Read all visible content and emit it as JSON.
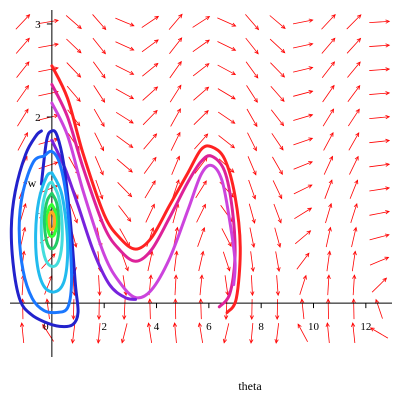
{
  "chart_data": {
    "type": "line",
    "title": "",
    "xlabel": "theta",
    "ylabel": "w",
    "xlim": [
      -1.6,
      13.0
    ],
    "ylim": [
      -0.45,
      3.15
    ],
    "grid": false,
    "legend": "none",
    "x_ticks": [
      0,
      2,
      4,
      6,
      8,
      10,
      12
    ],
    "y_ticks": [
      1,
      2,
      3
    ],
    "x_tick_labels": [
      "0",
      "2",
      "4",
      "6",
      "8",
      "10",
      "12"
    ],
    "y_tick_labels": [
      "1",
      "2",
      "3"
    ],
    "direction_field": {
      "color": "#ff0000",
      "system": "theta' = w, w' = -sin(theta)",
      "columns": 15,
      "rows": 14
    },
    "series": [
      {
        "color": "#ff2222",
        "initial": [
          0,
          2.55
        ],
        "points": [
          [
            0,
            2.55
          ],
          [
            0.6,
            2.2
          ],
          [
            1.2,
            1.6
          ],
          [
            2,
            0.95
          ],
          [
            2.6,
            0.7
          ],
          [
            3.2,
            0.58
          ],
          [
            3.8,
            0.7
          ],
          [
            4.5,
            1.05
          ],
          [
            5.2,
            1.4
          ],
          [
            5.7,
            1.65
          ],
          [
            6.1,
            1.68
          ],
          [
            6.6,
            1.55
          ],
          [
            7,
            1.15
          ],
          [
            7.2,
            0.6
          ],
          [
            7.05,
            0.05
          ],
          [
            6.7,
            -0.1
          ]
        ]
      },
      {
        "color": "#dd2299",
        "initial": [
          0,
          2.35
        ],
        "points": [
          [
            0,
            2.35
          ],
          [
            0.6,
            2.0
          ],
          [
            1.2,
            1.45
          ],
          [
            2,
            0.82
          ],
          [
            2.6,
            0.57
          ],
          [
            3.2,
            0.45
          ],
          [
            3.8,
            0.57
          ],
          [
            4.5,
            0.92
          ],
          [
            5.2,
            1.3
          ],
          [
            5.7,
            1.52
          ],
          [
            6.1,
            1.58
          ],
          [
            6.6,
            1.42
          ],
          [
            6.9,
            1.0
          ],
          [
            7,
            0.5
          ],
          [
            6.8,
            0.1
          ],
          [
            6.4,
            -0.04
          ]
        ]
      },
      {
        "color": "#cc44dd",
        "initial": [
          0,
          2.15
        ],
        "points": [
          [
            0,
            2.15
          ],
          [
            0.6,
            1.8
          ],
          [
            1.2,
            1.2
          ],
          [
            2,
            0.52
          ],
          [
            2.6,
            0.22
          ],
          [
            3.2,
            0.06
          ],
          [
            3.8,
            0.14
          ],
          [
            4.5,
            0.48
          ],
          [
            5.2,
            1.0
          ],
          [
            5.7,
            1.38
          ],
          [
            6.1,
            1.48
          ],
          [
            6.5,
            1.32
          ],
          [
            6.8,
            0.88
          ],
          [
            7,
            0.45
          ],
          [
            6.95,
            0.2
          ]
        ]
      },
      {
        "color": "#7722dd",
        "initial": [
          0,
          1.75
        ],
        "points": [
          [
            0,
            1.75
          ],
          [
            0.5,
            1.45
          ],
          [
            1.0,
            1.05
          ],
          [
            1.6,
            0.55
          ],
          [
            2.2,
            0.2
          ],
          [
            2.8,
            0.06
          ],
          [
            3.2,
            0.04
          ]
        ]
      },
      {
        "color": "#2222cc",
        "initial": [
          0,
          1.85
        ],
        "points": [
          [
            -0.4,
            1.28
          ],
          [
            -0.2,
            1.75
          ],
          [
            0,
            1.85
          ],
          [
            0.2,
            1.8
          ],
          [
            0.45,
            1.5
          ],
          [
            0.7,
            0.9
          ],
          [
            0.9,
            0.2
          ],
          [
            1,
            -0.1
          ],
          [
            0.8,
            -0.23
          ],
          [
            0.3,
            -0.25
          ],
          [
            -0.3,
            -0.2
          ],
          [
            -0.8,
            -0.12
          ],
          [
            -1.2,
            0.02
          ],
          [
            -1.45,
            0.35
          ],
          [
            -1.55,
            0.8
          ],
          [
            -1.4,
            1.2
          ],
          [
            -1.0,
            1.6
          ],
          [
            -0.6,
            1.8
          ],
          [
            -0.4,
            1.85
          ]
        ]
      },
      {
        "color": "#1a77ff",
        "initial": [
          0,
          1.63
        ],
        "points": [
          [
            -0.3,
            1.58
          ],
          [
            0,
            1.63
          ],
          [
            0.3,
            1.5
          ],
          [
            0.55,
            1.15
          ],
          [
            0.7,
            0.65
          ],
          [
            0.75,
            0.2
          ],
          [
            0.6,
            -0.05
          ],
          [
            0.2,
            -0.1
          ],
          [
            -0.3,
            -0.08
          ],
          [
            -0.75,
            0.05
          ],
          [
            -1.1,
            0.35
          ],
          [
            -1.25,
            0.8
          ],
          [
            -1.1,
            1.2
          ],
          [
            -0.7,
            1.52
          ],
          [
            -0.3,
            1.58
          ]
        ]
      },
      {
        "color": "#22bbee",
        "initial": [
          0,
          1.4
        ],
        "points": [
          [
            0,
            1.4
          ],
          [
            0.35,
            1.2
          ],
          [
            0.55,
            0.85
          ],
          [
            0.6,
            0.5
          ],
          [
            0.45,
            0.22
          ],
          [
            0.1,
            0.12
          ],
          [
            -0.3,
            0.18
          ],
          [
            -0.55,
            0.4
          ],
          [
            -0.62,
            0.75
          ],
          [
            -0.5,
            1.1
          ],
          [
            -0.2,
            1.36
          ],
          [
            0,
            1.4
          ]
        ]
      },
      {
        "color": "#44dddd",
        "initial": [
          0,
          1.3
        ],
        "points": [
          [
            0,
            1.3
          ],
          [
            0.25,
            1.15
          ],
          [
            0.38,
            0.9
          ],
          [
            0.38,
            0.62
          ],
          [
            0.22,
            0.43
          ],
          [
            -0.05,
            0.4
          ],
          [
            -0.28,
            0.5
          ],
          [
            -0.4,
            0.75
          ],
          [
            -0.35,
            1.05
          ],
          [
            -0.15,
            1.26
          ],
          [
            0,
            1.3
          ]
        ]
      },
      {
        "color": "#22cc66",
        "initial": [
          0,
          1.18
        ],
        "points": [
          [
            0,
            1.18
          ],
          [
            0.18,
            1.08
          ],
          [
            0.26,
            0.9
          ],
          [
            0.24,
            0.72
          ],
          [
            0.1,
            0.6
          ],
          [
            -0.1,
            0.6
          ],
          [
            -0.24,
            0.72
          ],
          [
            -0.28,
            0.92
          ],
          [
            -0.18,
            1.1
          ],
          [
            0,
            1.18
          ]
        ]
      },
      {
        "color": "#33ff33",
        "initial": [
          0,
          1.06
        ],
        "points": [
          [
            0,
            1.06
          ],
          [
            0.11,
            1.0
          ],
          [
            0.16,
            0.9
          ],
          [
            0.14,
            0.78
          ],
          [
            0.04,
            0.72
          ],
          [
            -0.08,
            0.73
          ],
          [
            -0.16,
            0.82
          ],
          [
            -0.17,
            0.94
          ],
          [
            -0.1,
            1.03
          ],
          [
            0,
            1.06
          ]
        ]
      },
      {
        "color": "#ffaa22",
        "initial": [
          0,
          0.98
        ],
        "points": [
          [
            0,
            0.98
          ],
          [
            0.07,
            0.95
          ],
          [
            0.1,
            0.89
          ],
          [
            0.08,
            0.82
          ],
          [
            0.01,
            0.79
          ],
          [
            -0.06,
            0.8
          ],
          [
            -0.1,
            0.86
          ],
          [
            -0.1,
            0.93
          ],
          [
            -0.05,
            0.97
          ],
          [
            0,
            0.98
          ]
        ]
      }
    ]
  }
}
